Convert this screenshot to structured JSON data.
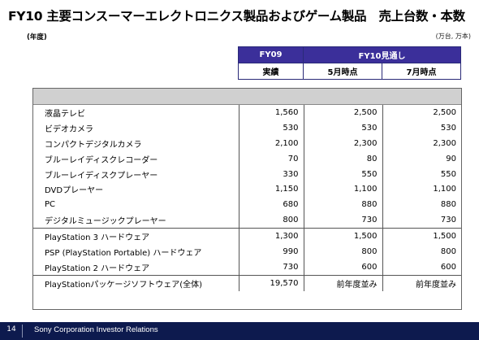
{
  "title": "FY10 主要コンスーマーエレクトロニクス製品およびゲーム製品　売上台数・本数",
  "fiscal_year_label": "(年度)",
  "unit_label": "(万台, 万本)",
  "header": {
    "fy09": "FY09",
    "fy10": "FY10見通し",
    "actual": "実績",
    "may": "5月時点",
    "july": "7月時点"
  },
  "rows": [
    {
      "name": "液晶テレビ",
      "fy09": "1,560",
      "may": "2,500",
      "july": "2,500"
    },
    {
      "name": "ビデオカメラ",
      "fy09": "530",
      "may": "530",
      "july": "530"
    },
    {
      "name": "コンパクトデジタルカメラ",
      "fy09": "2,100",
      "may": "2,300",
      "july": "2,300"
    },
    {
      "name": "ブルーレイディスクレコーダー",
      "fy09": "70",
      "may": "80",
      "july": "90"
    },
    {
      "name": "ブルーレイディスクプレーヤー",
      "fy09": "330",
      "may": "550",
      "july": "550"
    },
    {
      "name": "DVDプレーヤー",
      "fy09": "1,150",
      "may": "1,100",
      "july": "1,100"
    },
    {
      "name": "PC",
      "fy09": "680",
      "may": "880",
      "july": "880"
    },
    {
      "name": "デジタルミュージックプレーヤー",
      "fy09": "800",
      "may": "730",
      "july": "730"
    },
    {
      "name": "PlayStation 3 ハードウェア",
      "fy09": "1,300",
      "may": "1,500",
      "july": "1,500"
    },
    {
      "name": "PSP (PlayStation Portable) ハードウェア",
      "fy09": "990",
      "may": "800",
      "july": "800"
    },
    {
      "name": "PlayStation 2 ハードウェア",
      "fy09": "730",
      "may": "600",
      "july": "600"
    },
    {
      "name": "PlayStationパッケージソフトウェア(全体)",
      "fy09": "19,570",
      "may": "前年度並み",
      "july": "前年度並み"
    }
  ],
  "footer": {
    "page_number": "14",
    "organization": "Sony Corporation Investor Relations"
  },
  "colors": {
    "header_purple": "#3b2f9a",
    "footer_navy": "#0d1a4e",
    "grey_band": "#d0d0d0"
  }
}
